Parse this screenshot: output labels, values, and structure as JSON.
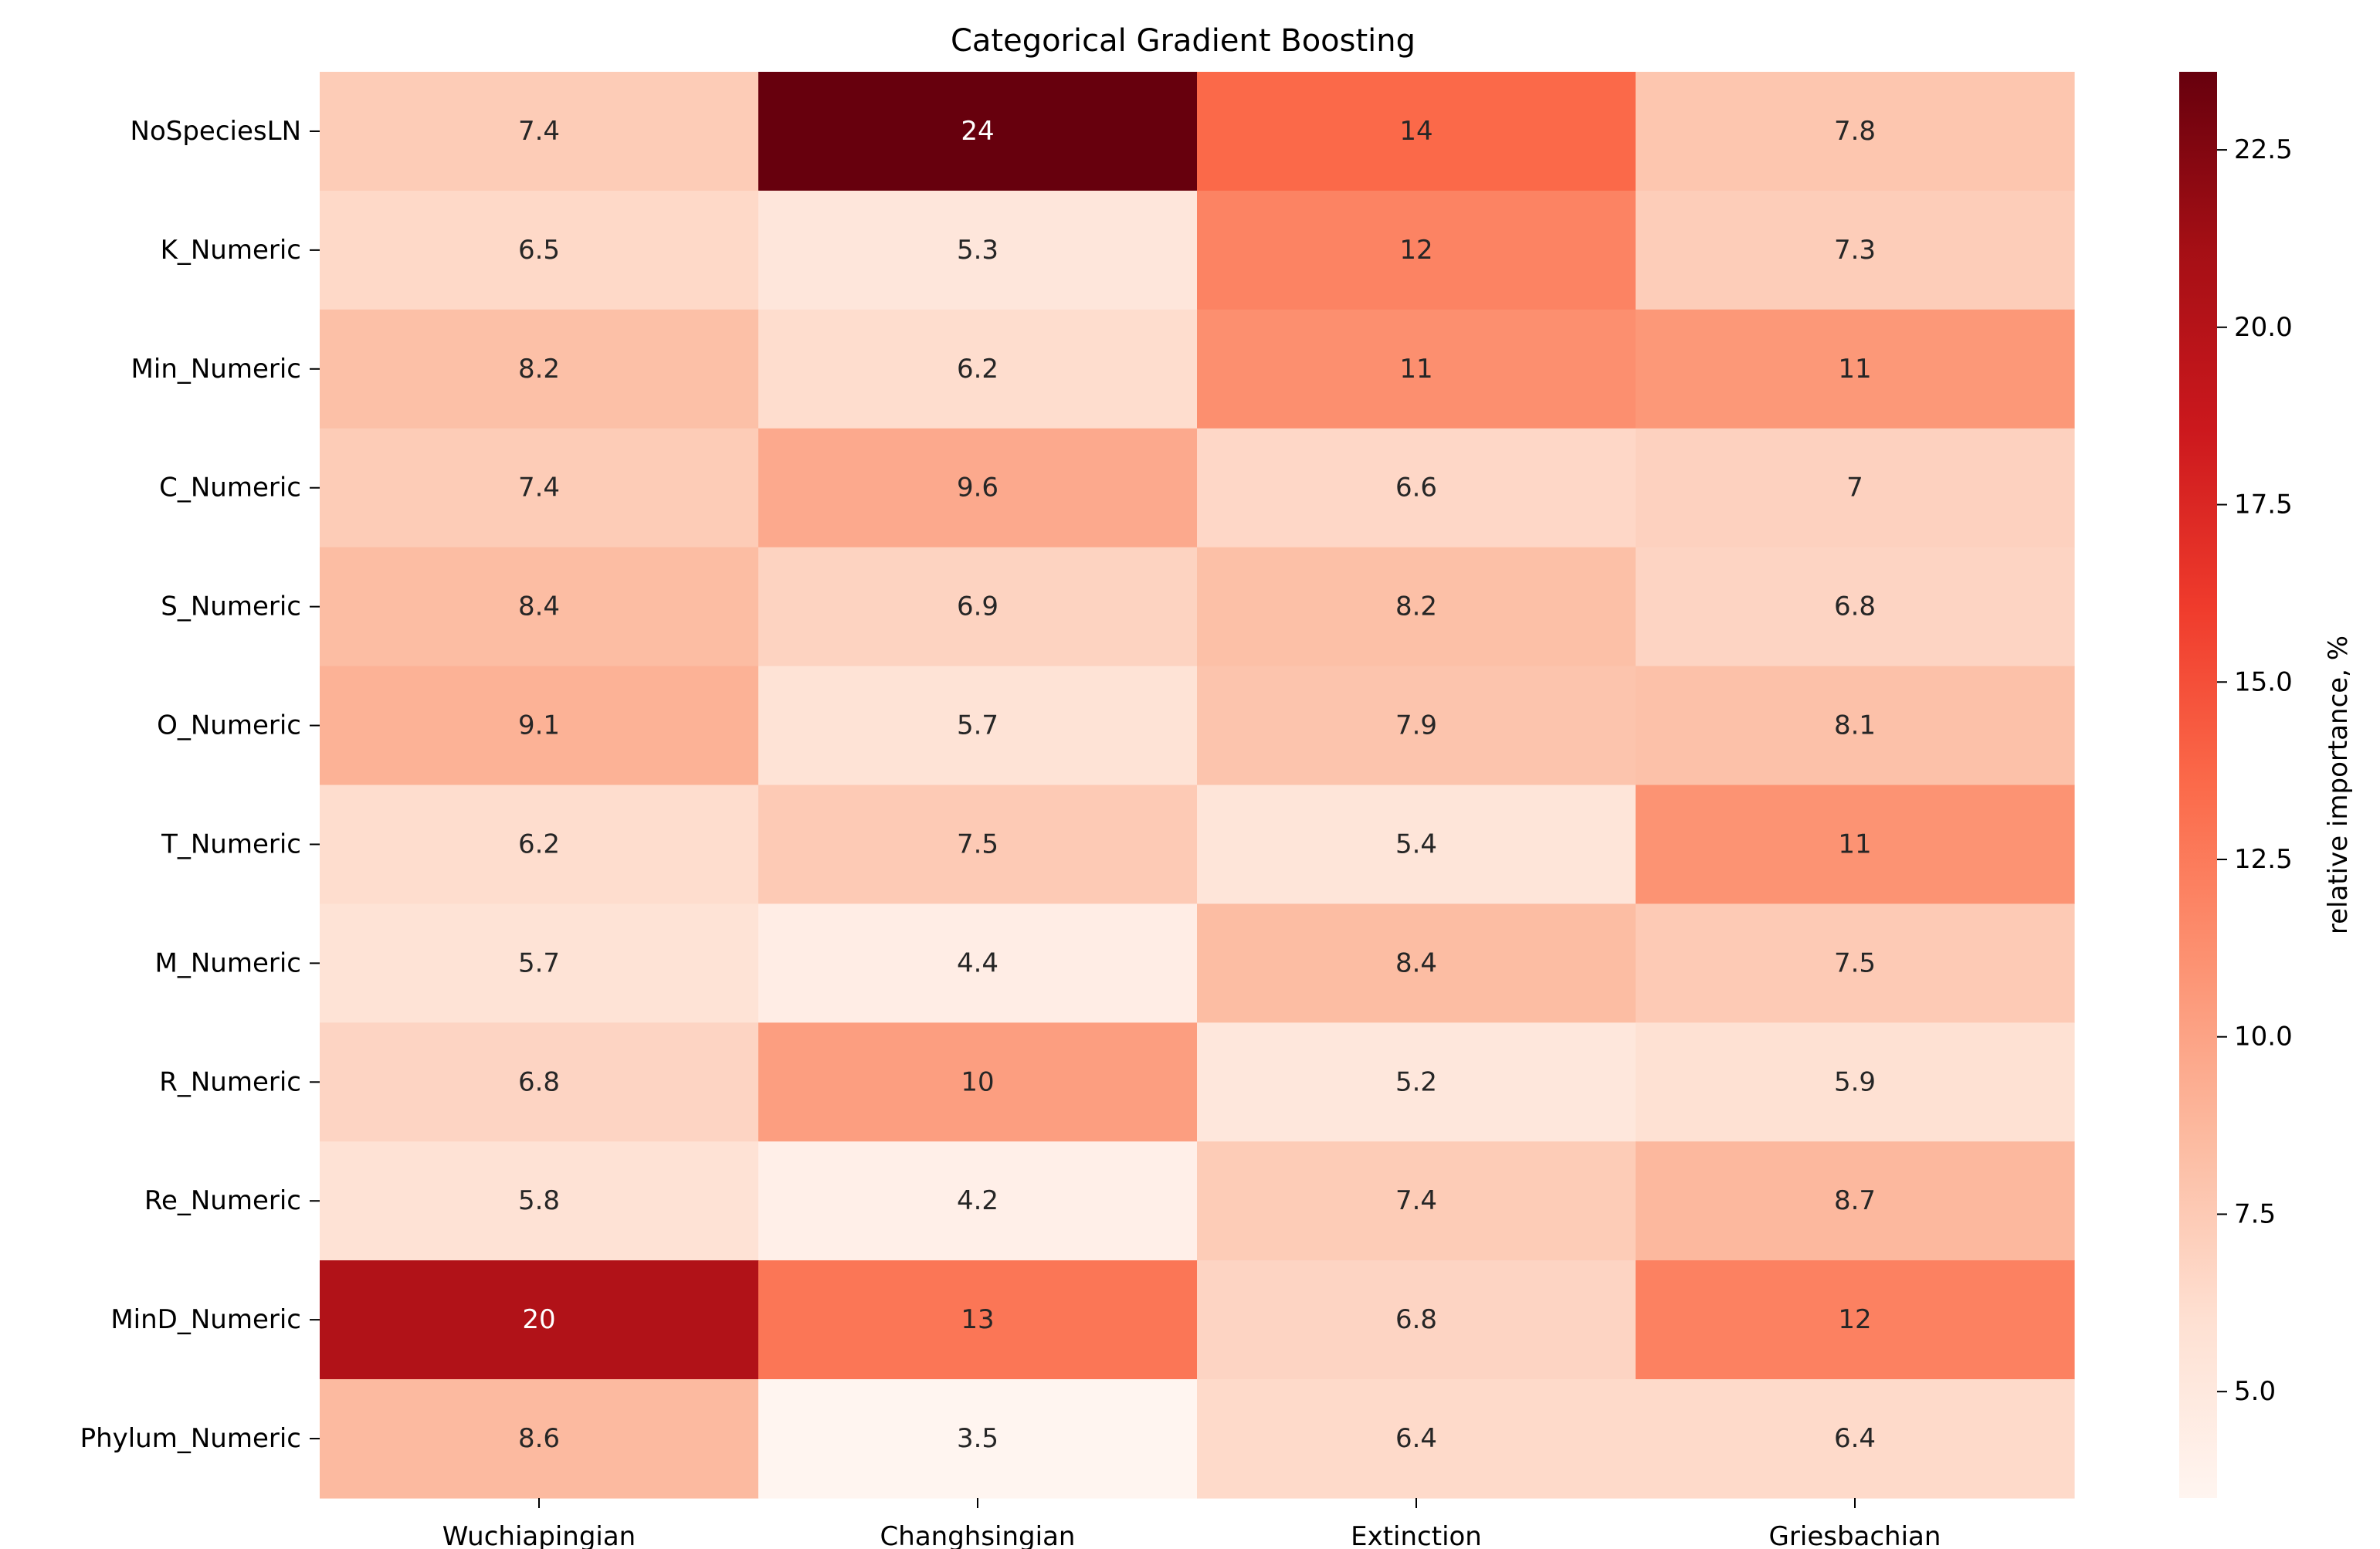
{
  "chart_data": {
    "type": "heatmap",
    "title": "Categorical Gradient Boosting",
    "xlabel": "",
    "ylabel": "",
    "columns": [
      "Wuchiapingian",
      "Changhsingian",
      "Extinction",
      "Griesbachian"
    ],
    "rows": [
      "NoSpeciesLN",
      "K_Numeric",
      "Min_Numeric",
      "C_Numeric",
      "S_Numeric",
      "O_Numeric",
      "T_Numeric",
      "M_Numeric",
      "R_Numeric",
      "Re_Numeric",
      "MinD_Numeric",
      "Phylum_Numeric"
    ],
    "values": [
      [
        7.4,
        23.6,
        13.6,
        7.8
      ],
      [
        6.5,
        5.3,
        12.0,
        7.3
      ],
      [
        8.2,
        6.2,
        11.2,
        10.7
      ],
      [
        7.4,
        9.6,
        6.6,
        7.0
      ],
      [
        8.4,
        6.9,
        8.2,
        6.8
      ],
      [
        9.1,
        5.7,
        7.9,
        8.1
      ],
      [
        6.2,
        7.5,
        5.4,
        11.0
      ],
      [
        5.7,
        4.4,
        8.4,
        7.5
      ],
      [
        6.8,
        10.3,
        5.2,
        5.9
      ],
      [
        5.8,
        4.2,
        7.4,
        8.7
      ],
      [
        20.3,
        12.8,
        6.8,
        12.1
      ],
      [
        8.6,
        3.5,
        6.4,
        6.4
      ]
    ],
    "annotations": [
      [
        "7.4",
        "24",
        "14",
        "7.8"
      ],
      [
        "6.5",
        "5.3",
        "12",
        "7.3"
      ],
      [
        "8.2",
        "6.2",
        "11",
        "11"
      ],
      [
        "7.4",
        "9.6",
        "6.6",
        "7"
      ],
      [
        "8.4",
        "6.9",
        "8.2",
        "6.8"
      ],
      [
        "9.1",
        "5.7",
        "7.9",
        "8.1"
      ],
      [
        "6.2",
        "7.5",
        "5.4",
        "11"
      ],
      [
        "5.7",
        "4.4",
        "8.4",
        "7.5"
      ],
      [
        "6.8",
        "10",
        "5.2",
        "5.9"
      ],
      [
        "5.8",
        "4.2",
        "7.4",
        "8.7"
      ],
      [
        "20",
        "13",
        "6.8",
        "12"
      ],
      [
        "8.6",
        "3.5",
        "6.4",
        "6.4"
      ]
    ],
    "colormap": "Reds",
    "vmin": 3.5,
    "vmax": 23.6,
    "colorbar": {
      "label": "relative importance, %",
      "ticks": [
        5.0,
        7.5,
        10.0,
        12.5,
        15.0,
        17.5,
        20.0,
        22.5
      ],
      "tick_labels": [
        "5.0",
        "7.5",
        "10.0",
        "12.5",
        "15.0",
        "17.5",
        "20.0",
        "22.5"
      ]
    },
    "colors": {
      "low": "#fff5f0",
      "high": "#67000d"
    }
  }
}
